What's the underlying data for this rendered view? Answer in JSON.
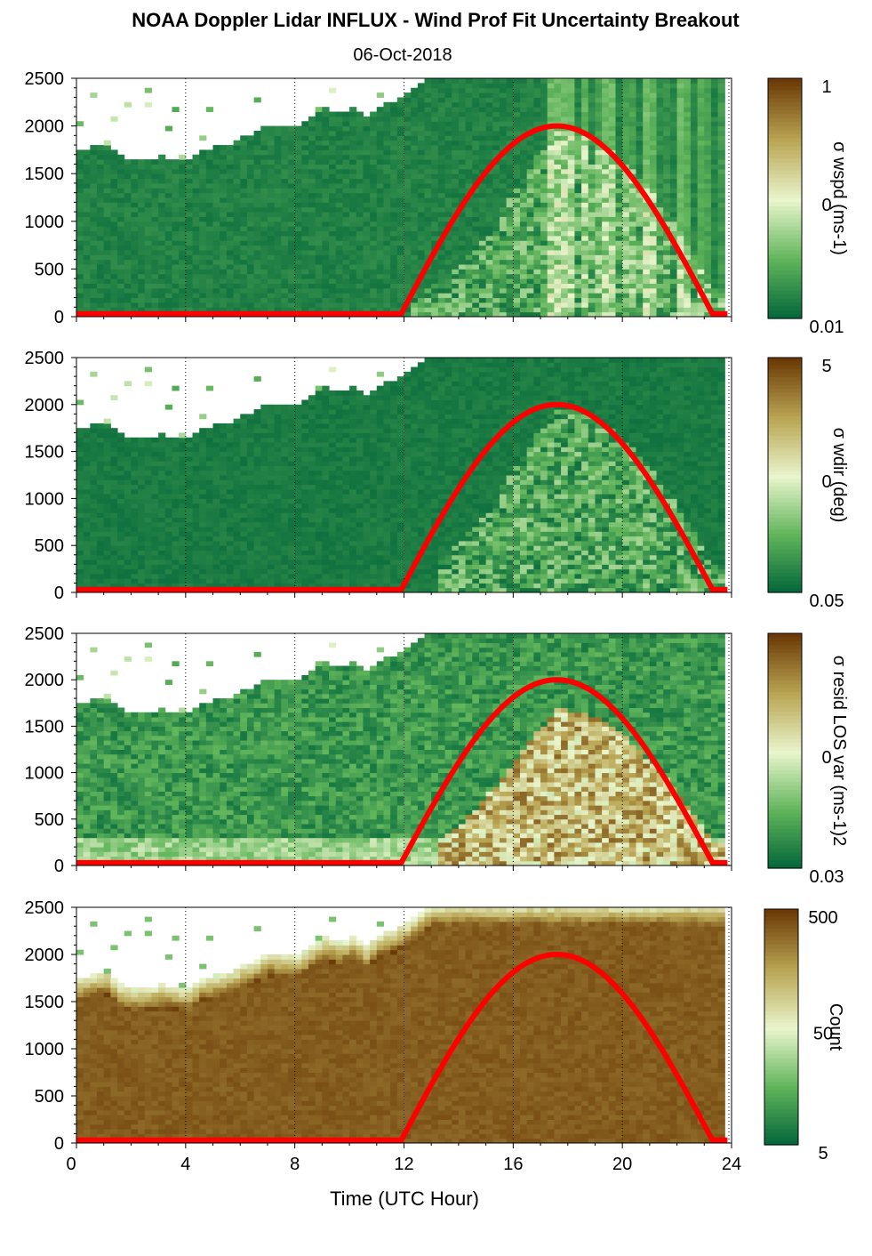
{
  "figure": {
    "title": "NOAA Doppler Lidar INFLUX - Wind Prof Fit Uncertainty Breakout",
    "subtitle": "06-Oct-2018",
    "xlabel": "Time (UTC Hour)"
  },
  "colors": {
    "dark_green": "#00643a",
    "light_green": "#5fb45a",
    "pale": "#e9f5cc",
    "khaki": "#b9a553",
    "brown": "#6b3a06",
    "sun_curve": "#ff0000",
    "white": "#ffffff"
  },
  "chart_data": [
    {
      "type": "heatmap",
      "variable": "wspd",
      "colorbar_label": "σ wspd (ms-1)",
      "colorbar_ticks": [
        "1",
        "0",
        "0.01"
      ],
      "x_range": [
        0,
        24
      ],
      "y_range": [
        0,
        2500
      ],
      "x_ticks": [
        0,
        4,
        8,
        12,
        16,
        20,
        24
      ],
      "y_ticks": [
        0,
        500,
        1000,
        1500,
        2000,
        2500
      ],
      "overlay_curve": {
        "rise_hour": 11.9,
        "set_hour": 23.3,
        "peak_hour": 17.5,
        "peak_height": 2000,
        "base": 30
      }
    },
    {
      "type": "heatmap",
      "variable": "wdir",
      "colorbar_label": "σ wdir (deg)",
      "colorbar_ticks": [
        "5",
        "0",
        "0.05"
      ],
      "x_range": [
        0,
        24
      ],
      "y_range": [
        0,
        2500
      ],
      "x_ticks": [
        0,
        4,
        8,
        12,
        16,
        20,
        24
      ],
      "y_ticks": [
        0,
        500,
        1000,
        1500,
        2000,
        2500
      ],
      "overlay_curve": {
        "rise_hour": 11.9,
        "set_hour": 23.3,
        "peak_hour": 17.5,
        "peak_height": 2000,
        "base": 30
      }
    },
    {
      "type": "heatmap",
      "variable": "resid_los_var",
      "colorbar_label": "σ resid LOS var (ms-1)2",
      "colorbar_ticks": [
        "",
        "0",
        "0.03"
      ],
      "x_range": [
        0,
        24
      ],
      "y_range": [
        0,
        2500
      ],
      "x_ticks": [
        0,
        4,
        8,
        12,
        16,
        20,
        24
      ],
      "y_ticks": [
        0,
        500,
        1000,
        1500,
        2000,
        2500
      ],
      "overlay_curve": {
        "rise_hour": 11.9,
        "set_hour": 23.3,
        "peak_hour": 17.5,
        "peak_height": 2000,
        "base": 30
      }
    },
    {
      "type": "heatmap",
      "variable": "count",
      "colorbar_label": "Count",
      "colorbar_ticks": [
        "500",
        "50",
        "5"
      ],
      "x_range": [
        0,
        24
      ],
      "y_range": [
        0,
        2500
      ],
      "x_ticks": [
        0,
        4,
        8,
        12,
        16,
        20,
        24
      ],
      "y_ticks": [
        0,
        500,
        1000,
        1500,
        2000,
        2500
      ],
      "overlay_curve": {
        "rise_hour": 11.9,
        "set_hour": 23.3,
        "peak_hour": 17.5,
        "peak_height": 2000,
        "base": 30
      }
    }
  ],
  "profile_top": [
    {
      "t": 0.0,
      "h": 1720
    },
    {
      "t": 0.5,
      "h": 1760
    },
    {
      "t": 1.0,
      "h": 1790
    },
    {
      "t": 1.5,
      "h": 1650
    },
    {
      "t": 2.0,
      "h": 1600
    },
    {
      "t": 2.5,
      "h": 1620
    },
    {
      "t": 3.0,
      "h": 1650
    },
    {
      "t": 3.5,
      "h": 1620
    },
    {
      "t": 4.0,
      "h": 1600
    },
    {
      "t": 4.5,
      "h": 1720
    },
    {
      "t": 5.0,
      "h": 1750
    },
    {
      "t": 5.5,
      "h": 1780
    },
    {
      "t": 6.0,
      "h": 1850
    },
    {
      "t": 6.5,
      "h": 1920
    },
    {
      "t": 7.0,
      "h": 1980
    },
    {
      "t": 7.5,
      "h": 1960
    },
    {
      "t": 8.0,
      "h": 1950
    },
    {
      "t": 8.5,
      "h": 2050
    },
    {
      "t": 9.0,
      "h": 2150
    },
    {
      "t": 9.5,
      "h": 2100
    },
    {
      "t": 10.0,
      "h": 2150
    },
    {
      "t": 10.5,
      "h": 2050
    },
    {
      "t": 11.0,
      "h": 2180
    },
    {
      "t": 11.5,
      "h": 2240
    },
    {
      "t": 12.0,
      "h": 2300
    },
    {
      "t": 12.5,
      "h": 2420
    },
    {
      "t": 13.0,
      "h": 2500
    },
    {
      "t": 24.0,
      "h": 2500
    }
  ]
}
